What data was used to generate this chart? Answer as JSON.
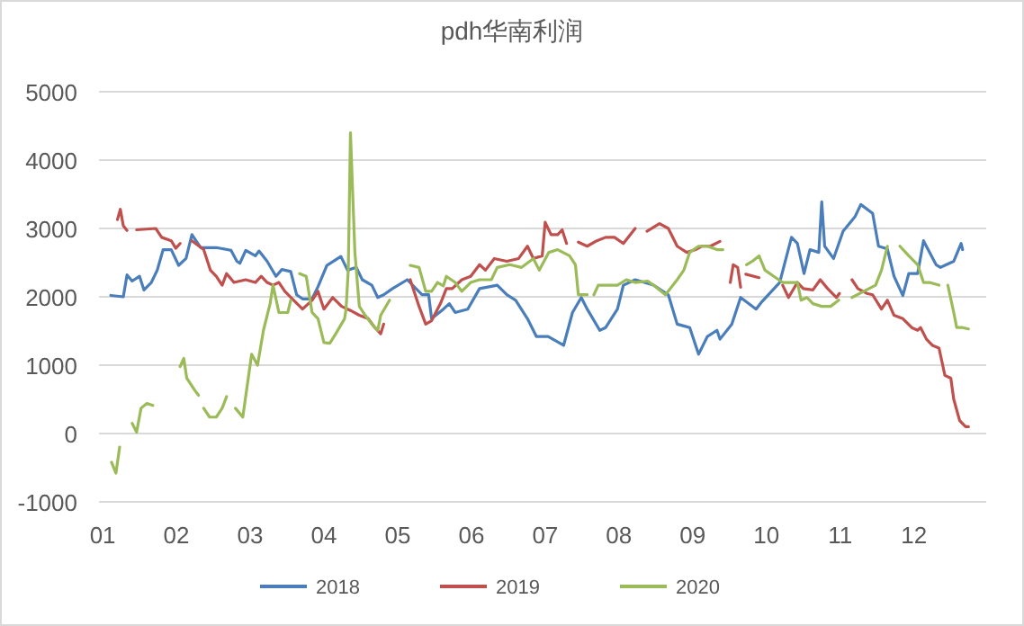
{
  "chart_data": {
    "type": "line",
    "title": "pdh华南利润",
    "xlim": [
      0.95,
      12.98
    ],
    "ylim": [
      -1000,
      5000
    ],
    "yticks": [
      -1000,
      0,
      1000,
      2000,
      3000,
      4000,
      5000
    ],
    "xticks": [
      {
        "value": 1,
        "label": "01"
      },
      {
        "value": 2,
        "label": "02"
      },
      {
        "value": 3,
        "label": "03"
      },
      {
        "value": 4,
        "label": "04"
      },
      {
        "value": 5,
        "label": "05"
      },
      {
        "value": 6,
        "label": "06"
      },
      {
        "value": 7,
        "label": "07"
      },
      {
        "value": 8,
        "label": "08"
      },
      {
        "value": 9,
        "label": "09"
      },
      {
        "value": 10,
        "label": "10"
      },
      {
        "value": 11,
        "label": "11"
      },
      {
        "value": 12,
        "label": "12"
      }
    ],
    "grid": "y",
    "legend": "bottom",
    "marker": "none",
    "line_style": "solid",
    "series": [
      {
        "name": "2018",
        "color": "#4a7ebb",
        "x": [
          1.11,
          1.28,
          1.33,
          1.4,
          1.5,
          1.56,
          1.66,
          1.74,
          1.82,
          1.93,
          2.03,
          2.13,
          2.21,
          2.33,
          2.54,
          2.74,
          2.82,
          2.86,
          2.94,
          3.07,
          3.12,
          3.23,
          3.35,
          3.43,
          3.55,
          3.63,
          3.71,
          3.84,
          3.92,
          4.04,
          4.23,
          4.32,
          4.44,
          4.52,
          4.65,
          4.73,
          4.81,
          4.93,
          5.13,
          5.33,
          5.42,
          5.46,
          5.62,
          5.7,
          5.78,
          5.95,
          6.11,
          6.35,
          6.48,
          6.6,
          6.76,
          6.88,
          7.04,
          7.25,
          7.37,
          7.49,
          7.57,
          7.74,
          7.82,
          7.98,
          8.06,
          8.22,
          8.47,
          8.67,
          8.79,
          8.96,
          9.08,
          9.2,
          9.33,
          9.37,
          9.53,
          9.65,
          9.86,
          9.94,
          10.18,
          10.34,
          10.42,
          10.51,
          10.59,
          10.71,
          10.75,
          10.79,
          10.91,
          11.04,
          11.2,
          11.28,
          11.44,
          11.52,
          11.64,
          11.73,
          11.85,
          11.93,
          12.05,
          12.13,
          12.3,
          12.36,
          12.54,
          12.64,
          12.66
        ],
        "values": [
          2020,
          2000,
          2320,
          2230,
          2300,
          2100,
          2210,
          2390,
          2690,
          2690,
          2460,
          2560,
          2910,
          2720,
          2720,
          2680,
          2520,
          2490,
          2680,
          2600,
          2670,
          2520,
          2300,
          2400,
          2370,
          2030,
          1970,
          1970,
          2150,
          2460,
          2590,
          2390,
          2430,
          2250,
          2170,
          1990,
          2030,
          2120,
          2250,
          2030,
          2030,
          1680,
          1820,
          1900,
          1770,
          1820,
          2120,
          2170,
          2030,
          1950,
          1680,
          1420,
          1420,
          1290,
          1770,
          1990,
          1820,
          1510,
          1550,
          1820,
          2170,
          2250,
          2170,
          2030,
          1600,
          1550,
          1160,
          1420,
          1510,
          1380,
          1600,
          1990,
          1820,
          1930,
          2210,
          2870,
          2780,
          2340,
          2690,
          2650,
          3390,
          2740,
          2560,
          2960,
          3170,
          3350,
          3220,
          2740,
          2700,
          2300,
          2020,
          2340,
          2340,
          2820,
          2470,
          2430,
          2520,
          2780,
          2690
        ]
      },
      {
        "name": "2019",
        "color": "#c0504d",
        "x": [
          1.2,
          1.24,
          1.28,
          1.33,
          1.37,
          1.46,
          1.72,
          1.8,
          1.93,
          1.99,
          2.05,
          2.13,
          2.21,
          2.37,
          2.46,
          2.54,
          2.62,
          2.68,
          2.78,
          2.94,
          3.07,
          3.15,
          3.23,
          3.31,
          3.39,
          3.47,
          3.59,
          3.71,
          3.84,
          3.92,
          4.0,
          4.12,
          4.24,
          4.36,
          4.48,
          4.6,
          4.69,
          4.77,
          4.81,
          4.85,
          5.17,
          5.29,
          5.38,
          5.46,
          5.58,
          5.66,
          5.74,
          5.87,
          5.99,
          6.11,
          6.19,
          6.31,
          6.48,
          6.64,
          6.76,
          6.84,
          6.96,
          7.0,
          7.08,
          7.17,
          7.23,
          7.29,
          7.37,
          7.45,
          7.57,
          7.7,
          7.82,
          7.94,
          8.06,
          8.22,
          8.3,
          8.38,
          8.55,
          8.67,
          8.79,
          8.92,
          9.04,
          9.12,
          9.24,
          9.37,
          9.44,
          9.51,
          9.55,
          9.61,
          9.65,
          9.68,
          9.72,
          9.9,
          9.95,
          10.22,
          10.3,
          10.42,
          10.5,
          10.63,
          10.73,
          10.83,
          10.95,
          10.99,
          11.07,
          11.16,
          11.24,
          11.36,
          11.44,
          11.56,
          11.64,
          11.73,
          11.85,
          11.97,
          12.05,
          12.09,
          12.17,
          12.25,
          12.34,
          12.42,
          12.5,
          12.54,
          12.62,
          12.7,
          12.74
        ],
        "values": [
          3130,
          3280,
          3040,
          2970,
          null,
          2980,
          3000,
          2870,
          2820,
          2710,
          2780,
          null,
          2820,
          2690,
          2390,
          2300,
          2170,
          2340,
          2210,
          2250,
          2210,
          2300,
          2210,
          2170,
          2210,
          2080,
          1950,
          1820,
          1950,
          2080,
          1820,
          1990,
          1860,
          1800,
          1730,
          1680,
          1550,
          1460,
          1600,
          null,
          2250,
          1860,
          1600,
          1650,
          1900,
          2120,
          2120,
          2250,
          2300,
          2470,
          2390,
          2560,
          2520,
          2560,
          2740,
          2560,
          2600,
          3090,
          2910,
          2910,
          2980,
          2780,
          null,
          2800,
          2740,
          2820,
          2870,
          2870,
          2780,
          3000,
          null,
          2960,
          3070,
          3000,
          2740,
          2650,
          2690,
          2740,
          2740,
          2810,
          null,
          2210,
          2470,
          2430,
          2140,
          null,
          2330,
          2280,
          null,
          2170,
          1990,
          2210,
          2120,
          2100,
          2250,
          2120,
          1990,
          2050,
          null,
          2250,
          2120,
          2050,
          2030,
          1820,
          1950,
          1730,
          1680,
          1550,
          1510,
          1550,
          1380,
          1290,
          1250,
          850,
          810,
          500,
          190,
          100,
          100
        ]
      },
      {
        "name": "2020",
        "color": "#9bbb59",
        "x": [
          1.12,
          1.18,
          1.23,
          1.3,
          1.4,
          1.46,
          1.52,
          1.6,
          1.68,
          1.8,
          2.05,
          2.1,
          2.14,
          2.25,
          2.3,
          2.33,
          2.37,
          2.45,
          2.54,
          2.62,
          2.68,
          2.74,
          2.8,
          2.9,
          3.02,
          3.1,
          3.18,
          3.27,
          3.31,
          3.39,
          3.51,
          3.55,
          3.6,
          3.67,
          3.76,
          3.84,
          3.92,
          4.0,
          4.08,
          4.16,
          4.28,
          4.3,
          4.33,
          4.36,
          4.42,
          4.48,
          4.56,
          4.65,
          4.73,
          4.77,
          4.89,
          4.95,
          5.17,
          5.29,
          5.38,
          5.46,
          5.54,
          5.62,
          5.66,
          5.78,
          5.87,
          5.99,
          6.11,
          6.27,
          6.35,
          6.52,
          6.68,
          6.84,
          6.92,
          7.05,
          7.17,
          7.33,
          7.41,
          7.45,
          7.57,
          7.63,
          7.66,
          7.72,
          7.86,
          7.98,
          8.1,
          8.22,
          8.39,
          8.47,
          8.63,
          8.79,
          8.88,
          8.96,
          9.08,
          9.2,
          9.33,
          9.41,
          9.5,
          9.73,
          9.81,
          9.9,
          9.98,
          10.1,
          10.22,
          10.34,
          10.42,
          10.47,
          10.55,
          10.63,
          10.75,
          10.87,
          10.98,
          11.05,
          11.16,
          11.32,
          11.48,
          11.56,
          11.64,
          11.7,
          11.81,
          11.93,
          12.05,
          12.13,
          12.21,
          12.34,
          12.4,
          12.46,
          12.54,
          12.58,
          12.66,
          12.74
        ],
        "values": [
          -420,
          -580,
          -200,
          null,
          150,
          20,
          370,
          440,
          410,
          null,
          980,
          1100,
          810,
          630,
          560,
          null,
          370,
          240,
          240,
          370,
          540,
          null,
          370,
          240,
          1160,
          1000,
          1510,
          1900,
          2170,
          1770,
          1770,
          1950,
          null,
          2340,
          2300,
          1770,
          1680,
          1330,
          1320,
          1460,
          1680,
          1820,
          2390,
          4400,
          2650,
          1860,
          1730,
          1600,
          1510,
          1730,
          1950,
          null,
          2460,
          2430,
          2080,
          2080,
          2210,
          2160,
          2300,
          2210,
          2080,
          2210,
          2250,
          2250,
          2430,
          2470,
          2430,
          2560,
          2390,
          2650,
          2690,
          2600,
          2470,
          2030,
          2030,
          null,
          2030,
          2170,
          2170,
          2170,
          2250,
          2210,
          2230,
          2170,
          2030,
          2250,
          2390,
          2650,
          2740,
          2740,
          2690,
          2690,
          null,
          2470,
          2520,
          2600,
          2390,
          2300,
          2210,
          2210,
          2210,
          1950,
          1990,
          1900,
          1860,
          1860,
          1950,
          null,
          1990,
          2080,
          2170,
          2390,
          2740,
          null,
          2740,
          2600,
          2470,
          2210,
          2210,
          2170,
          null,
          2170,
          1770,
          1550,
          1550,
          1530
        ]
      }
    ]
  }
}
